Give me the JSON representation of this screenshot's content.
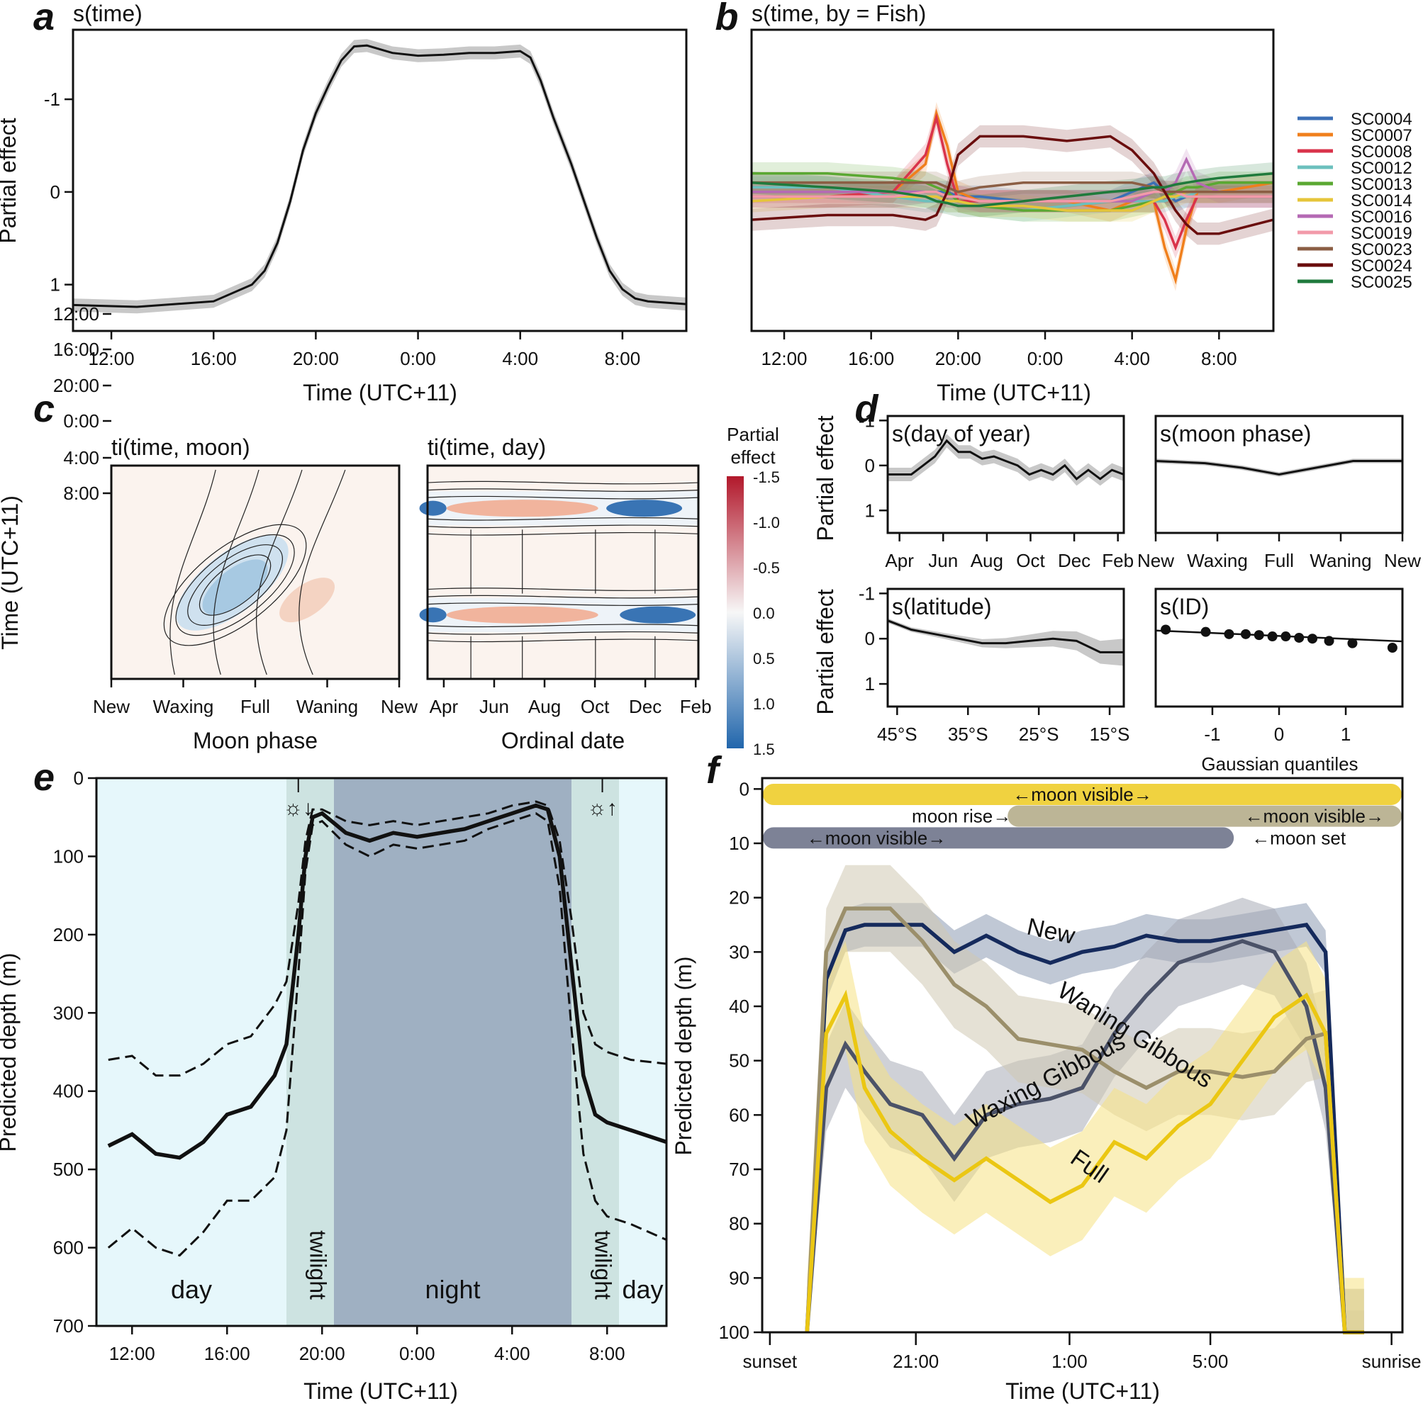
{
  "panels": [
    {
      "id": "a",
      "title": "s(time)"
    },
    {
      "id": "b",
      "title": "s(time, by = Fish)"
    },
    {
      "id": "c",
      "title": ""
    },
    {
      "id": "d",
      "title": ""
    },
    {
      "id": "e",
      "title": ""
    },
    {
      "id": "f",
      "title": ""
    }
  ],
  "chart_data": [
    {
      "panel": "a",
      "type": "line",
      "title": "s(time)",
      "xlabel": "Time (UTC+11)",
      "ylabel": "Partial effect",
      "xticks": [
        "12:00",
        "16:00",
        "20:00",
        "0:00",
        "4:00",
        "8:00"
      ],
      "yticks": [
        "-1",
        "0",
        "1"
      ],
      "ylim": [
        1.5,
        -1.75
      ],
      "y_reversed": true,
      "x_hours": [
        10.5,
        13,
        16,
        17.5,
        18,
        18.5,
        19,
        19.5,
        20,
        20.5,
        21,
        21.5,
        22,
        23,
        24,
        25,
        26,
        27,
        28,
        28.4,
        28.8,
        29.3,
        30,
        30.5,
        31,
        31.5,
        32,
        32.5,
        33,
        34.5
      ],
      "x_hours_note": "hours after midnight of first day; 24 = 0:00",
      "y": [
        1.22,
        1.24,
        1.18,
        1.0,
        0.85,
        0.55,
        0.1,
        -0.45,
        -0.85,
        -1.15,
        -1.42,
        -1.57,
        -1.58,
        -1.5,
        -1.47,
        -1.48,
        -1.5,
        -1.5,
        -1.52,
        -1.45,
        -1.2,
        -0.8,
        -0.3,
        0.1,
        0.5,
        0.85,
        1.05,
        1.15,
        1.18,
        1.21
      ],
      "band": 0.07
    },
    {
      "panel": "b",
      "type": "line",
      "title": "s(time, by = Fish)",
      "xlabel": "Time (UTC+11)",
      "xticks": [
        "12:00",
        "16:00",
        "20:00",
        "0:00",
        "4:00",
        "8:00"
      ],
      "ylim": [
        1.5,
        -1.75
      ],
      "y_reversed": true,
      "x_hours": [
        10.5,
        14,
        17,
        18.5,
        19,
        19.5,
        20,
        21,
        23,
        25,
        27,
        28,
        29,
        29.5,
        30,
        30.5,
        31,
        32,
        34.5
      ],
      "series": [
        {
          "name": "SC0004",
          "color": "#3b6fb6",
          "values": [
            0.05,
            0.05,
            0.05,
            0.0,
            0.0,
            0.0,
            0.05,
            0.05,
            0.1,
            0.1,
            0.1,
            0.0,
            -0.1,
            0.0,
            0.1,
            0.05,
            0.05,
            0.05,
            0.05
          ]
        },
        {
          "name": "SC0007",
          "color": "#f07f1c",
          "values": [
            0.0,
            0.0,
            0.0,
            -0.3,
            -0.85,
            -0.5,
            0.0,
            0.1,
            0.1,
            0.1,
            0.2,
            0.1,
            0.1,
            0.6,
            0.95,
            0.4,
            0.0,
            0.0,
            -0.1
          ]
        },
        {
          "name": "SC0008",
          "color": "#d9334b",
          "values": [
            0.05,
            0.05,
            0.0,
            -0.4,
            -0.8,
            -0.3,
            0.1,
            0.1,
            0.1,
            0.1,
            0.1,
            0.1,
            0.1,
            0.3,
            0.6,
            0.3,
            0.05,
            0.05,
            0.05
          ]
        },
        {
          "name": "SC0012",
          "color": "#6cc0bd",
          "values": [
            -0.05,
            -0.05,
            0.05,
            0.1,
            0.1,
            0.1,
            0.1,
            0.15,
            0.2,
            0.15,
            0.1,
            0.1,
            0.1,
            0.1,
            0.05,
            0.05,
            0.0,
            0.0,
            0.0
          ]
        },
        {
          "name": "SC0013",
          "color": "#5aa832",
          "values": [
            -0.2,
            -0.2,
            -0.15,
            -0.1,
            -0.05,
            0.0,
            0.1,
            0.15,
            0.2,
            0.2,
            0.2,
            0.15,
            0.1,
            0.05,
            0.0,
            -0.05,
            -0.05,
            -0.1,
            -0.1
          ]
        },
        {
          "name": "SC0014",
          "color": "#e6c53a",
          "values": [
            0.1,
            0.05,
            0.05,
            0.05,
            0.05,
            0.1,
            0.1,
            0.15,
            0.15,
            0.2,
            0.2,
            0.2,
            0.1,
            0.05,
            0.05,
            0.0,
            0.0,
            0.0,
            0.0
          ]
        },
        {
          "name": "SC0016",
          "color": "#b56ab4",
          "values": [
            0.0,
            0.0,
            0.0,
            0.0,
            0.0,
            0.05,
            0.05,
            0.1,
            0.1,
            0.1,
            0.1,
            0.1,
            0.0,
            0.0,
            -0.1,
            -0.35,
            -0.1,
            0.0,
            0.0
          ]
        },
        {
          "name": "SC0019",
          "color": "#f29aa9",
          "values": [
            0.05,
            0.05,
            0.05,
            0.0,
            0.0,
            0.05,
            0.05,
            0.1,
            0.1,
            0.1,
            0.1,
            0.05,
            0.0,
            0.0,
            0.0,
            0.05,
            0.05,
            0.05,
            0.05
          ]
        },
        {
          "name": "SC0023",
          "color": "#8b5e44",
          "values": [
            -0.1,
            -0.1,
            -0.1,
            -0.1,
            -0.1,
            -0.05,
            0.0,
            -0.05,
            -0.1,
            -0.1,
            -0.1,
            -0.1,
            -0.05,
            0.0,
            0.0,
            0.0,
            0.0,
            0.0,
            0.0
          ]
        },
        {
          "name": "SC0024",
          "color": "#6a0d0d",
          "values": [
            0.3,
            0.25,
            0.25,
            0.3,
            0.25,
            0.0,
            -0.4,
            -0.6,
            -0.6,
            -0.55,
            -0.6,
            -0.45,
            -0.2,
            0.0,
            0.2,
            0.35,
            0.45,
            0.45,
            0.3
          ]
        },
        {
          "name": "SC0025",
          "color": "#1f7a3c",
          "values": [
            -0.1,
            -0.05,
            0.0,
            0.05,
            0.1,
            0.12,
            0.15,
            0.15,
            0.1,
            0.05,
            0.0,
            -0.02,
            -0.05,
            -0.05,
            -0.08,
            -0.1,
            -0.12,
            -0.15,
            -0.2
          ]
        }
      ]
    },
    {
      "panel": "c",
      "type": "heatmap",
      "subplots": [
        {
          "title": "ti(time, moon)",
          "xlabel": "Moon phase",
          "xticks": [
            "New",
            "Waxing",
            "Full",
            "Waning",
            "New"
          ]
        },
        {
          "title": "ti(time, day)",
          "xlabel": "Ordinal date",
          "xticks": [
            "Apr",
            "Jun",
            "Aug",
            "Oct",
            "Dec",
            "Feb"
          ]
        }
      ],
      "ylabel": "Time (UTC+11)",
      "yticks": [
        "8:00",
        "4:00",
        "0:00",
        "20:00",
        "16:00",
        "12:00"
      ],
      "colorbar_title": [
        "Partial",
        "effect"
      ],
      "colorbar_ticks": [
        "-1.5",
        "-1.0",
        "-0.5",
        "0.0",
        "0.5",
        "1.0",
        "1.5"
      ],
      "colorbar_colors": {
        "neg": "#b2182b",
        "mid": "#f7f7f7",
        "pos": "#2166ac"
      }
    },
    {
      "panel": "d",
      "type": "line",
      "ylabel": "Partial effect",
      "yticks": [
        "-1",
        "0",
        "1"
      ],
      "ylim": [
        1.5,
        -1.1
      ],
      "subplots": [
        {
          "title": "s(day of year)",
          "xticks": [
            "Apr",
            "Jun",
            "Aug",
            "Oct",
            "Dec",
            "Feb"
          ],
          "x": [
            0,
            0.1,
            0.15,
            0.2,
            0.25,
            0.3,
            0.35,
            0.4,
            0.45,
            0.5,
            0.55,
            0.6,
            0.65,
            0.7,
            0.75,
            0.8,
            0.85,
            0.9,
            0.95,
            1.0
          ],
          "y": [
            0.2,
            0.2,
            0.0,
            -0.2,
            -0.55,
            -0.3,
            -0.3,
            -0.15,
            -0.2,
            -0.1,
            0.0,
            0.2,
            0.1,
            0.2,
            0.0,
            0.3,
            0.1,
            0.3,
            0.1,
            0.2
          ],
          "band": 0.15
        },
        {
          "title": "s(moon phase)",
          "xticks": [
            "New",
            "Waxing",
            "Full",
            "Waning",
            "New"
          ],
          "x": [
            0,
            0.2,
            0.35,
            0.5,
            0.65,
            0.8,
            1.0
          ],
          "y": [
            -0.1,
            -0.05,
            0.05,
            0.2,
            0.05,
            -0.1,
            -0.1
          ],
          "band": 0.05
        },
        {
          "title": "s(latitude)",
          "xticks": [
            "45°S",
            "35°S",
            "25°S",
            "15°S"
          ],
          "x": [
            0,
            0.1,
            0.2,
            0.3,
            0.4,
            0.5,
            0.6,
            0.7,
            0.8,
            0.9,
            1.0
          ],
          "y": [
            -0.4,
            -0.2,
            -0.1,
            0.0,
            0.1,
            0.1,
            0.05,
            0.0,
            0.05,
            0.3,
            0.3
          ],
          "band_start": 0.05,
          "band_end": 0.3
        },
        {
          "title": "s(ID)",
          "xlabel": "Gaussian quantiles",
          "xticks": [
            "-1",
            "0",
            "1"
          ],
          "xlim": [
            -1.85,
            1.85
          ],
          "points_x": [
            -1.7,
            -1.1,
            -0.75,
            -0.5,
            -0.3,
            -0.1,
            0.1,
            0.3,
            0.5,
            0.75,
            1.1,
            1.7
          ],
          "points_y": [
            -0.2,
            -0.15,
            -0.1,
            -0.1,
            -0.08,
            -0.05,
            -0.05,
            -0.02,
            0.0,
            0.05,
            0.1,
            0.2
          ],
          "fit_line": [
            -0.18,
            0.06
          ]
        }
      ]
    },
    {
      "panel": "e",
      "type": "line",
      "xlabel": "Time (UTC+11)",
      "ylabel": "Predicted depth (m)",
      "xticks": [
        "12:00",
        "16:00",
        "20:00",
        "0:00",
        "4:00",
        "8:00"
      ],
      "yticks": [
        0,
        100,
        200,
        300,
        400,
        500,
        600,
        700
      ],
      "ylim": [
        700,
        0
      ],
      "x_hours": [
        11,
        12,
        13,
        14,
        15,
        16,
        17,
        18,
        18.5,
        19,
        19.3,
        19.6,
        20,
        21,
        22,
        23,
        24,
        25,
        26,
        27,
        28,
        29,
        29.5,
        30,
        30.5,
        31,
        31.5,
        32,
        33,
        34.5
      ],
      "mean": [
        470,
        455,
        480,
        485,
        465,
        430,
        420,
        380,
        340,
        200,
        100,
        50,
        45,
        70,
        80,
        70,
        75,
        70,
        65,
        55,
        45,
        35,
        40,
        100,
        240,
        380,
        430,
        440,
        450,
        465
      ],
      "upper": [
        600,
        575,
        600,
        610,
        580,
        540,
        540,
        510,
        450,
        250,
        120,
        60,
        55,
        85,
        100,
        85,
        90,
        85,
        80,
        65,
        55,
        45,
        55,
        140,
        320,
        480,
        540,
        560,
        570,
        590
      ],
      "lower": [
        360,
        355,
        380,
        380,
        365,
        340,
        330,
        290,
        260,
        160,
        80,
        40,
        40,
        55,
        60,
        55,
        60,
        55,
        50,
        45,
        35,
        30,
        35,
        80,
        180,
        300,
        340,
        350,
        360,
        365
      ],
      "regions": [
        {
          "label": "day",
          "from": 10.5,
          "to": 18.5,
          "color": "#e6f7fb"
        },
        {
          "label": "twilight",
          "from": 18.5,
          "to": 20.5,
          "color": "#cde3e1"
        },
        {
          "label": "night",
          "from": 20.5,
          "to": 30.5,
          "color": "#9fb0c2"
        },
        {
          "label": "twilight",
          "from": 30.5,
          "to": 32.5,
          "color": "#cde3e1"
        },
        {
          "label": "day",
          "from": 32.5,
          "to": 34.5,
          "color": "#e6f7fb"
        }
      ],
      "markers": [
        {
          "label": "☼↓",
          "hour": 19.0
        },
        {
          "label": "☼↑",
          "hour": 31.8
        }
      ]
    },
    {
      "panel": "f",
      "type": "line",
      "xlabel": "Time (UTC+11)",
      "ylabel": "Predicted depth (m)",
      "xticks": [
        "sunset",
        "21:00",
        "1:00",
        "5:00",
        "sunrise"
      ],
      "yticks": [
        0,
        10,
        20,
        30,
        40,
        50,
        60,
        70,
        80,
        90,
        100
      ],
      "ylim": [
        100,
        -2
      ],
      "x": [
        0.07,
        0.1,
        0.13,
        0.16,
        0.2,
        0.25,
        0.3,
        0.35,
        0.4,
        0.45,
        0.5,
        0.55,
        0.6,
        0.65,
        0.7,
        0.75,
        0.8,
        0.85,
        0.88,
        0.91,
        0.94
      ],
      "series": [
        {
          "name": "New",
          "color": "#152a5c",
          "band": "#8c9ab3",
          "values": [
            100,
            35,
            26,
            25,
            25,
            25,
            30,
            27,
            30,
            32,
            30,
            29,
            27,
            28,
            28,
            27,
            26,
            25,
            30,
            100,
            100
          ]
        },
        {
          "name": "Waxing Gibbous",
          "color": "#4b5268",
          "band": "#a7abb6",
          "values": [
            100,
            55,
            47,
            52,
            58,
            60,
            68,
            60,
            58,
            57,
            55,
            45,
            38,
            32,
            30,
            28,
            30,
            40,
            55,
            100,
            100
          ]
        },
        {
          "name": "Waning Gibbous",
          "color": "#9b8f6b",
          "band": "#cfc9b2",
          "values": [
            100,
            30,
            22,
            22,
            22,
            28,
            36,
            40,
            46,
            47,
            48,
            52,
            55,
            52,
            52,
            53,
            52,
            46,
            45,
            100,
            100
          ]
        },
        {
          "name": "Full",
          "color": "#ebc713",
          "band": "#f5e283",
          "values": [
            100,
            45,
            38,
            55,
            63,
            68,
            72,
            68,
            72,
            76,
            73,
            65,
            68,
            62,
            58,
            50,
            42,
            38,
            45,
            100,
            100
          ]
        }
      ],
      "moon_bars": [
        {
          "phase": "Full",
          "label": "←moon visible→",
          "start": 0.0,
          "end": 1.0,
          "y": 1,
          "color": "#f0d240",
          "text_color": "#ffffff"
        },
        {
          "phase": "Waning Gibbous",
          "label_left": "moon rise→",
          "label_right": "←moon visible→",
          "start": 0.4,
          "end": 1.0,
          "y": 5,
          "color": "#bcb596",
          "text_color": "#ffffff"
        },
        {
          "phase": "Waxing Gibbous",
          "label_left": "←moon visible→",
          "label_right": "←moon set",
          "start": 0.0,
          "end": 0.72,
          "y": 9,
          "color": "#7d8296",
          "text_color": "#ffffff"
        }
      ]
    }
  ]
}
